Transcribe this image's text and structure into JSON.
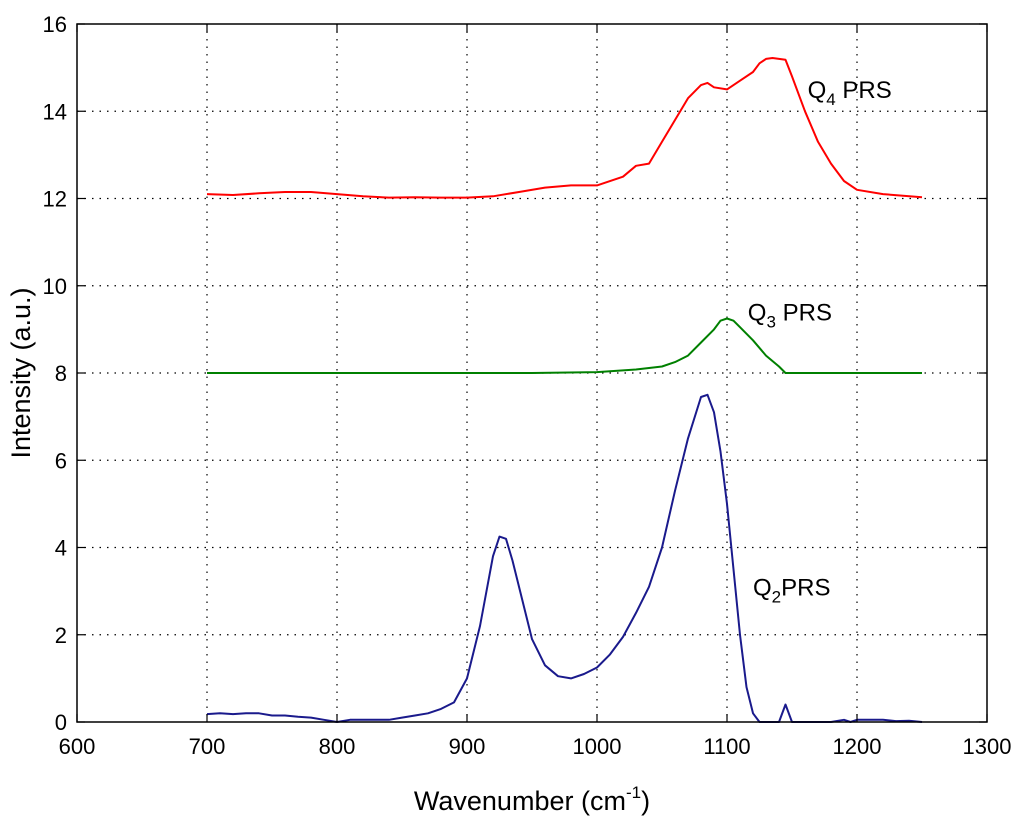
{
  "chart_data": {
    "type": "line",
    "xlabel": "Wavenumber (cm",
    "xlabel_superscript": "-1",
    "xlabel_suffix": ")",
    "ylabel": "Intensity (a.u.)",
    "xlim": [
      600,
      1300
    ],
    "ylim": [
      0,
      16
    ],
    "xticks": [
      600,
      700,
      800,
      900,
      1000,
      1100,
      1200,
      1300
    ],
    "yticks": [
      0,
      2,
      4,
      6,
      8,
      10,
      12,
      14,
      16
    ],
    "grid": true,
    "grid_style": "dotted",
    "series": [
      {
        "label": "Q",
        "subscript": "4",
        "suffix": " PRS",
        "color": "#ff0000",
        "label_at": [
          1162,
          14.3
        ],
        "x": [
          700,
          720,
          740,
          760,
          780,
          800,
          820,
          840,
          860,
          880,
          900,
          920,
          940,
          960,
          980,
          1000,
          1020,
          1030,
          1040,
          1050,
          1060,
          1070,
          1080,
          1085,
          1090,
          1100,
          1110,
          1120,
          1125,
          1130,
          1135,
          1140,
          1145,
          1150,
          1160,
          1170,
          1180,
          1190,
          1200,
          1220,
          1250
        ],
        "y": [
          12.1,
          12.08,
          12.12,
          12.15,
          12.15,
          12.1,
          12.05,
          12.02,
          12.03,
          12.02,
          12.02,
          12.05,
          12.15,
          12.25,
          12.3,
          12.3,
          12.5,
          12.75,
          12.8,
          13.3,
          13.8,
          14.3,
          14.6,
          14.65,
          14.55,
          14.5,
          14.7,
          14.9,
          15.1,
          15.2,
          15.22,
          15.2,
          15.18,
          14.8,
          14.0,
          13.3,
          12.8,
          12.4,
          12.2,
          12.1,
          12.03
        ]
      },
      {
        "label": "Q",
        "subscript": "3",
        "suffix": " PRS",
        "color": "#008000",
        "label_at": [
          1116,
          9.2
        ],
        "x": [
          700,
          750,
          800,
          850,
          900,
          950,
          1000,
          1030,
          1050,
          1060,
          1070,
          1080,
          1090,
          1095,
          1100,
          1105,
          1110,
          1120,
          1130,
          1140,
          1145,
          1150,
          1200,
          1250
        ],
        "y": [
          8.0,
          8.0,
          8.0,
          8.0,
          8.0,
          8.0,
          8.02,
          8.08,
          8.15,
          8.25,
          8.4,
          8.7,
          9.0,
          9.2,
          9.25,
          9.2,
          9.05,
          8.75,
          8.4,
          8.15,
          8.0,
          8.0,
          8.0,
          8.0
        ]
      },
      {
        "label": "Q",
        "subscript": "2",
        "suffix": "PRS",
        "color": "#1a1a8c",
        "label_at": [
          1120,
          2.9
        ],
        "x": [
          700,
          710,
          720,
          730,
          740,
          750,
          760,
          770,
          780,
          790,
          800,
          810,
          820,
          830,
          840,
          850,
          860,
          870,
          880,
          890,
          900,
          910,
          920,
          925,
          930,
          935,
          940,
          950,
          960,
          970,
          980,
          990,
          1000,
          1010,
          1020,
          1030,
          1040,
          1050,
          1060,
          1070,
          1080,
          1085,
          1090,
          1095,
          1100,
          1105,
          1110,
          1115,
          1120,
          1125,
          1130,
          1140,
          1145,
          1150,
          1160,
          1180,
          1190,
          1195,
          1200,
          1220,
          1230,
          1240,
          1250
        ],
        "y": [
          0.18,
          0.2,
          0.18,
          0.2,
          0.2,
          0.15,
          0.15,
          0.12,
          0.1,
          0.05,
          0.0,
          0.05,
          0.05,
          0.05,
          0.05,
          0.1,
          0.15,
          0.2,
          0.3,
          0.45,
          1.0,
          2.2,
          3.8,
          4.25,
          4.2,
          3.7,
          3.1,
          1.9,
          1.3,
          1.05,
          1.0,
          1.1,
          1.25,
          1.55,
          1.95,
          2.5,
          3.1,
          4.0,
          5.3,
          6.5,
          7.45,
          7.5,
          7.1,
          6.2,
          5.0,
          3.5,
          2.0,
          0.8,
          0.2,
          0.0,
          0.0,
          0.0,
          0.4,
          0.0,
          0.0,
          0.0,
          0.05,
          0.0,
          0.05,
          0.05,
          0.02,
          0.03,
          0.0
        ]
      }
    ]
  }
}
